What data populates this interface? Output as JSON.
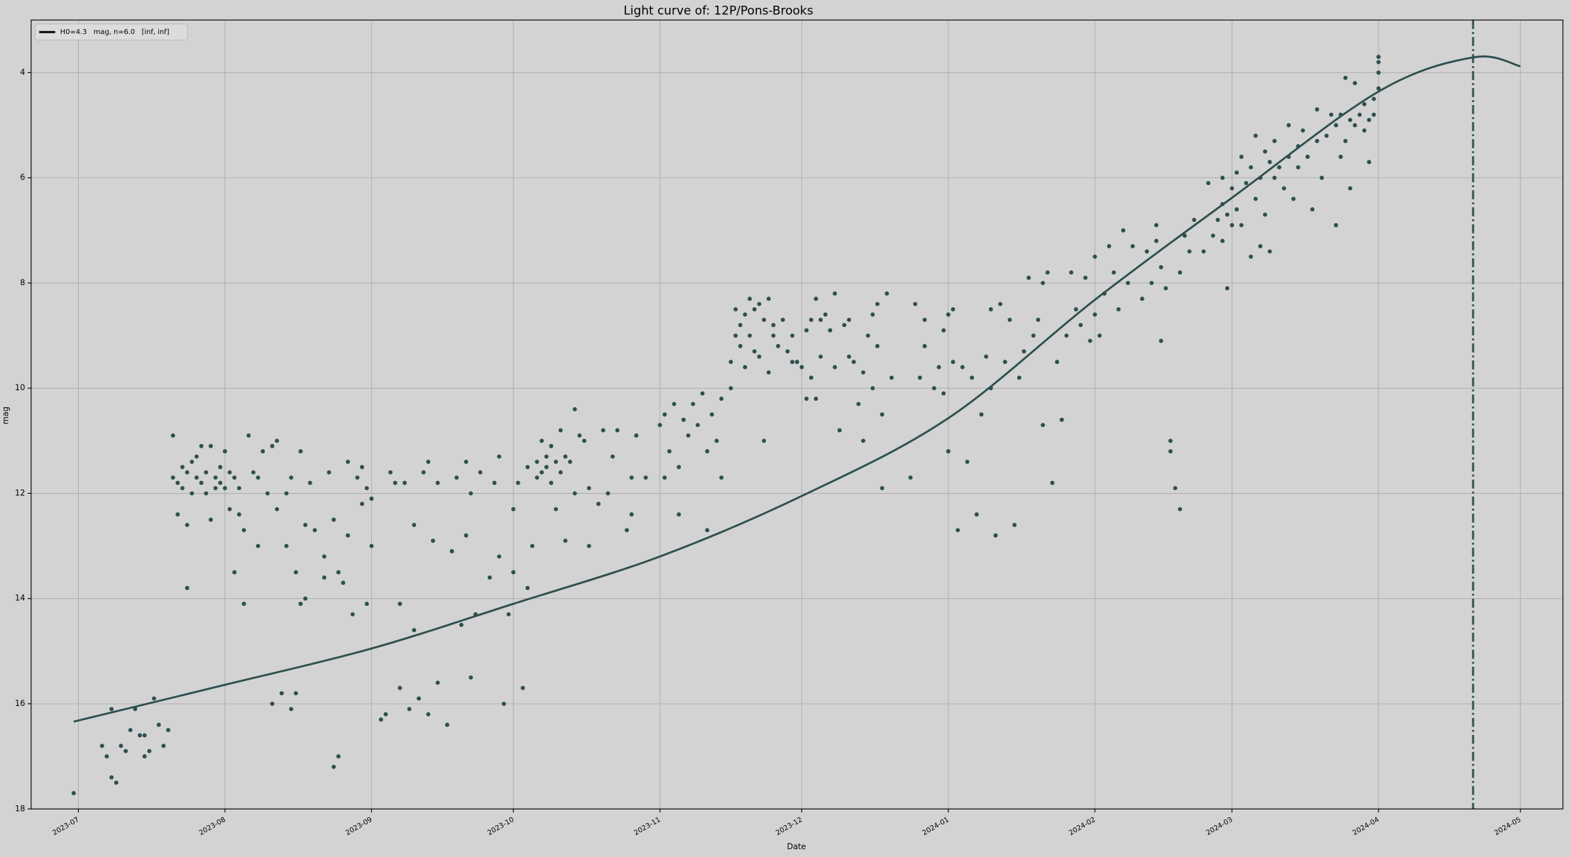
{
  "chart_data": {
    "type": "scatter",
    "title": "Light curve of: 12P/Pons-Brooks",
    "x_label": "Date",
    "y_label": "mag",
    "xlim": [
      "2023-06-21",
      "2024-05-10"
    ],
    "xticks": [
      {
        "value": "2023-07-01",
        "label": "2023-07"
      },
      {
        "value": "2023-08-01",
        "label": "2023-08"
      },
      {
        "value": "2023-09-01",
        "label": "2023-09"
      },
      {
        "value": "2023-10-01",
        "label": "2023-10"
      },
      {
        "value": "2023-11-01",
        "label": "2023-11"
      },
      {
        "value": "2023-12-01",
        "label": "2023-12"
      },
      {
        "value": "2024-01-01",
        "label": "2024-01"
      },
      {
        "value": "2024-02-01",
        "label": "2024-02"
      },
      {
        "value": "2024-03-01",
        "label": "2024-03"
      },
      {
        "value": "2024-04-01",
        "label": "2024-04"
      },
      {
        "value": "2024-05-01",
        "label": "2024-05"
      }
    ],
    "ylim": [
      18,
      3
    ],
    "yticks": [
      4,
      6,
      8,
      10,
      12,
      14,
      16,
      18
    ],
    "grid": true,
    "legend": "upper left",
    "vline": {
      "x": "2024-04-21",
      "color": "#2f4f4f"
    },
    "series": [
      {
        "type": "scatter",
        "color": "#2f4f4f",
        "x": [
          "2023-06-30",
          "2023-07-06",
          "2023-07-07",
          "2023-07-08",
          "2023-07-08",
          "2023-07-09",
          "2023-07-10",
          "2023-07-11",
          "2023-07-12",
          "2023-07-13",
          "2023-07-14",
          "2023-07-15",
          "2023-07-15",
          "2023-07-16",
          "2023-07-17",
          "2023-07-18",
          "2023-07-19",
          "2023-07-20",
          "2023-07-21",
          "2023-07-21",
          "2023-07-22",
          "2023-07-22",
          "2023-07-23",
          "2023-07-23",
          "2023-07-24",
          "2023-07-24",
          "2023-07-24",
          "2023-07-25",
          "2023-07-25",
          "2023-07-26",
          "2023-07-26",
          "2023-07-27",
          "2023-07-27",
          "2023-07-28",
          "2023-07-28",
          "2023-07-29",
          "2023-07-29",
          "2023-07-30",
          "2023-07-30",
          "2023-07-31",
          "2023-07-31",
          "2023-08-01",
          "2023-08-01",
          "2023-08-02",
          "2023-08-02",
          "2023-08-03",
          "2023-08-03",
          "2023-08-04",
          "2023-08-04",
          "2023-08-05",
          "2023-08-05",
          "2023-08-06",
          "2023-08-07",
          "2023-08-08",
          "2023-08-08",
          "2023-08-09",
          "2023-08-10",
          "2023-08-11",
          "2023-08-11",
          "2023-08-12",
          "2023-08-12",
          "2023-08-13",
          "2023-08-14",
          "2023-08-14",
          "2023-08-15",
          "2023-08-15",
          "2023-08-16",
          "2023-08-16",
          "2023-08-17",
          "2023-08-17",
          "2023-08-18",
          "2023-08-18",
          "2023-08-19",
          "2023-08-20",
          "2023-08-22",
          "2023-08-22",
          "2023-08-23",
          "2023-08-24",
          "2023-08-24",
          "2023-08-25",
          "2023-08-25",
          "2023-08-26",
          "2023-08-27",
          "2023-08-27",
          "2023-08-28",
          "2023-08-29",
          "2023-08-30",
          "2023-08-30",
          "2023-08-31",
          "2023-08-31",
          "2023-09-01",
          "2023-09-01",
          "2023-09-03",
          "2023-09-04",
          "2023-09-05",
          "2023-09-06",
          "2023-09-07",
          "2023-09-07",
          "2023-09-08",
          "2023-09-09",
          "2023-09-10",
          "2023-09-10",
          "2023-09-11",
          "2023-09-12",
          "2023-09-13",
          "2023-09-13",
          "2023-09-14",
          "2023-09-15",
          "2023-09-15",
          "2023-09-17",
          "2023-09-18",
          "2023-09-19",
          "2023-09-20",
          "2023-09-21",
          "2023-09-21",
          "2023-09-22",
          "2023-09-22",
          "2023-09-23",
          "2023-09-24",
          "2023-09-26",
          "2023-09-27",
          "2023-09-28",
          "2023-09-28",
          "2023-09-29",
          "2023-09-30",
          "2023-10-01",
          "2023-10-01",
          "2023-10-02",
          "2023-10-03",
          "2023-10-04",
          "2023-10-04",
          "2023-10-05",
          "2023-10-06",
          "2023-10-06",
          "2023-10-07",
          "2023-10-07",
          "2023-10-08",
          "2023-10-08",
          "2023-10-09",
          "2023-10-09",
          "2023-10-10",
          "2023-10-10",
          "2023-10-11",
          "2023-10-11",
          "2023-10-12",
          "2023-10-12",
          "2023-10-13",
          "2023-10-14",
          "2023-10-14",
          "2023-10-15",
          "2023-10-16",
          "2023-10-17",
          "2023-10-17",
          "2023-10-19",
          "2023-10-20",
          "2023-10-21",
          "2023-10-22",
          "2023-10-23",
          "2023-10-25",
          "2023-10-26",
          "2023-10-26",
          "2023-10-27",
          "2023-10-29",
          "2023-11-01",
          "2023-11-02",
          "2023-11-02",
          "2023-11-03",
          "2023-11-04",
          "2023-11-05",
          "2023-11-05",
          "2023-11-06",
          "2023-11-07",
          "2023-11-08",
          "2023-11-09",
          "2023-11-10",
          "2023-11-11",
          "2023-11-11",
          "2023-11-12",
          "2023-11-13",
          "2023-11-14",
          "2023-11-14",
          "2023-11-16",
          "2023-11-16",
          "2023-11-17",
          "2023-11-17",
          "2023-11-18",
          "2023-11-18",
          "2023-11-19",
          "2023-11-19",
          "2023-11-20",
          "2023-11-20",
          "2023-11-21",
          "2023-11-21",
          "2023-11-22",
          "2023-11-22",
          "2023-11-23",
          "2023-11-23",
          "2023-11-24",
          "2023-11-24",
          "2023-11-25",
          "2023-11-25",
          "2023-11-26",
          "2023-11-27",
          "2023-11-28",
          "2023-11-29",
          "2023-11-29",
          "2023-11-30",
          "2023-12-01",
          "2023-12-02",
          "2023-12-02",
          "2023-12-03",
          "2023-12-03",
          "2023-12-04",
          "2023-12-04",
          "2023-12-05",
          "2023-12-05",
          "2023-12-06",
          "2023-12-07",
          "2023-12-08",
          "2023-12-08",
          "2023-12-09",
          "2023-12-10",
          "2023-12-11",
          "2023-12-11",
          "2023-12-12",
          "2023-12-13",
          "2023-12-14",
          "2023-12-14",
          "2023-12-15",
          "2023-12-16",
          "2023-12-16",
          "2023-12-17",
          "2023-12-17",
          "2023-12-18",
          "2023-12-18",
          "2023-12-19",
          "2023-12-20",
          "2023-12-24",
          "2023-12-25",
          "2023-12-26",
          "2023-12-27",
          "2023-12-27",
          "2023-12-29",
          "2023-12-30",
          "2023-12-31",
          "2023-12-31",
          "2024-01-01",
          "2024-01-01",
          "2024-01-02",
          "2024-01-02",
          "2024-01-03",
          "2024-01-04",
          "2024-01-05",
          "2024-01-06",
          "2024-01-07",
          "2024-01-08",
          "2024-01-09",
          "2024-01-10",
          "2024-01-10",
          "2024-01-11",
          "2024-01-12",
          "2024-01-13",
          "2024-01-14",
          "2024-01-15",
          "2024-01-16",
          "2024-01-17",
          "2024-01-18",
          "2024-01-19",
          "2024-01-20",
          "2024-01-21",
          "2024-01-21",
          "2024-01-22",
          "2024-01-23",
          "2024-01-24",
          "2024-01-25",
          "2024-01-26",
          "2024-01-27",
          "2024-01-28",
          "2024-01-29",
          "2024-01-30",
          "2024-01-31",
          "2024-02-01",
          "2024-02-01",
          "2024-02-02",
          "2024-02-03",
          "2024-02-04",
          "2024-02-05",
          "2024-02-06",
          "2024-02-07",
          "2024-02-08",
          "2024-02-09",
          "2024-02-11",
          "2024-02-12",
          "2024-02-13",
          "2024-02-14",
          "2024-02-14",
          "2024-02-15",
          "2024-02-15",
          "2024-02-16",
          "2024-02-17",
          "2024-02-17",
          "2024-02-18",
          "2024-02-19",
          "2024-02-19",
          "2024-02-20",
          "2024-02-21",
          "2024-02-22",
          "2024-02-24",
          "2024-02-25",
          "2024-02-26",
          "2024-02-27",
          "2024-02-28",
          "2024-02-28",
          "2024-02-28",
          "2024-02-29",
          "2024-02-29",
          "2024-03-01",
          "2024-03-01",
          "2024-03-02",
          "2024-03-02",
          "2024-03-03",
          "2024-03-03",
          "2024-03-04",
          "2024-03-05",
          "2024-03-05",
          "2024-03-06",
          "2024-03-06",
          "2024-03-07",
          "2024-03-07",
          "2024-03-08",
          "2024-03-08",
          "2024-03-09",
          "2024-03-09",
          "2024-03-10",
          "2024-03-10",
          "2024-03-11",
          "2024-03-12",
          "2024-03-13",
          "2024-03-13",
          "2024-03-14",
          "2024-03-15",
          "2024-03-15",
          "2024-03-16",
          "2024-03-17",
          "2024-03-18",
          "2024-03-19",
          "2024-03-19",
          "2024-03-20",
          "2024-03-21",
          "2024-03-22",
          "2024-03-23",
          "2024-03-23",
          "2024-03-24",
          "2024-03-24",
          "2024-03-25",
          "2024-03-25",
          "2024-03-26",
          "2024-03-26",
          "2024-03-27",
          "2024-03-27",
          "2024-03-28",
          "2024-03-29",
          "2024-03-29",
          "2024-03-30",
          "2024-03-30",
          "2024-03-31",
          "2024-03-31",
          "2024-04-01",
          "2024-04-01",
          "2024-04-01",
          "2024-04-01"
        ],
        "values": [
          17.7,
          16.8,
          17.0,
          16.1,
          17.4,
          17.5,
          16.8,
          16.9,
          16.5,
          16.1,
          16.6,
          16.6,
          17.0,
          16.9,
          15.9,
          16.4,
          16.8,
          16.5,
          10.9,
          11.7,
          11.8,
          12.4,
          11.5,
          11.9,
          11.6,
          12.6,
          13.8,
          11.4,
          12.0,
          11.7,
          11.3,
          11.8,
          11.1,
          11.6,
          12.0,
          11.1,
          12.5,
          11.7,
          11.9,
          11.5,
          11.8,
          11.2,
          11.9,
          11.6,
          12.3,
          13.5,
          11.7,
          11.9,
          12.4,
          12.7,
          14.1,
          10.9,
          11.6,
          13.0,
          11.7,
          11.2,
          12.0,
          11.1,
          16.0,
          12.3,
          11.0,
          15.8,
          12.0,
          13.0,
          16.1,
          11.7,
          13.5,
          15.8,
          11.2,
          14.1,
          14.0,
          12.6,
          11.8,
          12.7,
          13.2,
          13.6,
          11.6,
          17.2,
          12.5,
          17.0,
          13.5,
          13.7,
          11.4,
          12.8,
          14.3,
          11.7,
          11.5,
          12.2,
          14.1,
          11.9,
          13.0,
          12.1,
          16.3,
          16.2,
          11.6,
          11.8,
          14.1,
          15.7,
          11.8,
          16.1,
          14.6,
          12.6,
          15.9,
          11.6,
          16.2,
          11.4,
          12.9,
          15.6,
          11.8,
          16.4,
          13.1,
          11.7,
          14.5,
          12.8,
          11.4,
          15.5,
          12.0,
          14.3,
          11.6,
          13.6,
          11.8,
          13.2,
          11.3,
          16.0,
          14.3,
          12.3,
          13.5,
          11.8,
          15.7,
          13.8,
          11.5,
          13.0,
          11.4,
          11.7,
          11.0,
          11.6,
          11.3,
          11.5,
          11.1,
          11.8,
          11.4,
          12.3,
          10.8,
          11.6,
          11.3,
          12.9,
          11.4,
          10.4,
          12.0,
          10.9,
          11.0,
          11.9,
          13.0,
          12.2,
          10.8,
          12.0,
          11.3,
          10.8,
          12.7,
          11.7,
          12.4,
          10.9,
          11.7,
          10.7,
          11.7,
          10.5,
          11.2,
          10.3,
          11.5,
          12.4,
          10.6,
          10.9,
          10.3,
          10.7,
          10.1,
          11.2,
          12.7,
          10.5,
          11.0,
          11.7,
          10.2,
          10.0,
          9.5,
          8.5,
          9.0,
          9.2,
          8.8,
          9.6,
          8.6,
          8.3,
          9.0,
          8.5,
          9.3,
          8.4,
          9.4,
          8.7,
          11.0,
          8.3,
          9.7,
          8.8,
          9.0,
          9.2,
          8.7,
          9.3,
          9.0,
          9.5,
          9.5,
          9.6,
          8.9,
          10.2,
          8.7,
          9.8,
          8.3,
          10.2,
          8.7,
          9.4,
          8.6,
          8.9,
          9.6,
          8.2,
          10.8,
          8.8,
          9.4,
          8.7,
          9.5,
          10.3,
          9.7,
          11.0,
          9.0,
          8.6,
          10.0,
          8.4,
          9.2,
          10.5,
          11.9,
          8.2,
          9.8,
          11.7,
          8.4,
          9.8,
          8.7,
          9.2,
          10.0,
          9.6,
          8.9,
          10.1,
          8.6,
          11.2,
          9.5,
          8.5,
          12.7,
          9.6,
          11.4,
          9.8,
          12.4,
          10.5,
          9.4,
          8.5,
          10.0,
          12.8,
          8.4,
          9.5,
          8.7,
          12.6,
          9.8,
          9.3,
          7.9,
          9.0,
          8.7,
          8.0,
          10.7,
          7.8,
          11.8,
          9.5,
          10.6,
          9.0,
          7.8,
          8.5,
          8.8,
          7.9,
          9.1,
          7.5,
          8.6,
          9.0,
          8.2,
          7.3,
          7.8,
          8.5,
          7.0,
          8.0,
          7.3,
          8.3,
          7.4,
          8.0,
          6.9,
          7.2,
          9.1,
          7.7,
          8.1,
          11.0,
          11.2,
          11.9,
          7.8,
          12.3,
          7.1,
          7.4,
          6.8,
          7.4,
          6.1,
          7.1,
          6.8,
          6.5,
          7.2,
          6.0,
          6.7,
          8.1,
          6.9,
          6.2,
          5.9,
          6.6,
          5.6,
          6.9,
          6.1,
          5.8,
          7.5,
          5.2,
          6.4,
          6.0,
          7.3,
          5.5,
          6.7,
          5.7,
          7.4,
          6.0,
          5.3,
          5.8,
          6.2,
          5.0,
          5.6,
          6.4,
          5.4,
          5.8,
          5.1,
          5.6,
          6.6,
          5.3,
          4.7,
          6.0,
          5.2,
          4.8,
          5.0,
          6.9,
          4.8,
          5.6,
          4.1,
          5.3,
          4.9,
          6.2,
          4.2,
          5.0,
          4.8,
          4.6,
          5.1,
          4.9,
          5.7,
          4.5,
          4.8,
          4.0,
          4.3,
          3.8,
          3.7
        ]
      },
      {
        "type": "line",
        "name": "H0=4.3   mag, n=6.0   [inf, inf]",
        "color": "#2f4f4f",
        "legend_color": "#000000",
        "x": [
          "2023-06-30",
          "2023-08-01",
          "2023-09-01",
          "2023-10-01",
          "2023-11-01",
          "2023-12-01",
          "2024-01-01",
          "2024-02-01",
          "2024-03-01",
          "2024-04-01",
          "2024-04-21",
          "2024-05-01"
        ],
        "values": [
          16.34,
          15.64,
          14.95,
          14.1,
          13.2,
          12.05,
          10.57,
          8.32,
          6.38,
          4.36,
          3.71,
          3.88
        ]
      }
    ]
  }
}
